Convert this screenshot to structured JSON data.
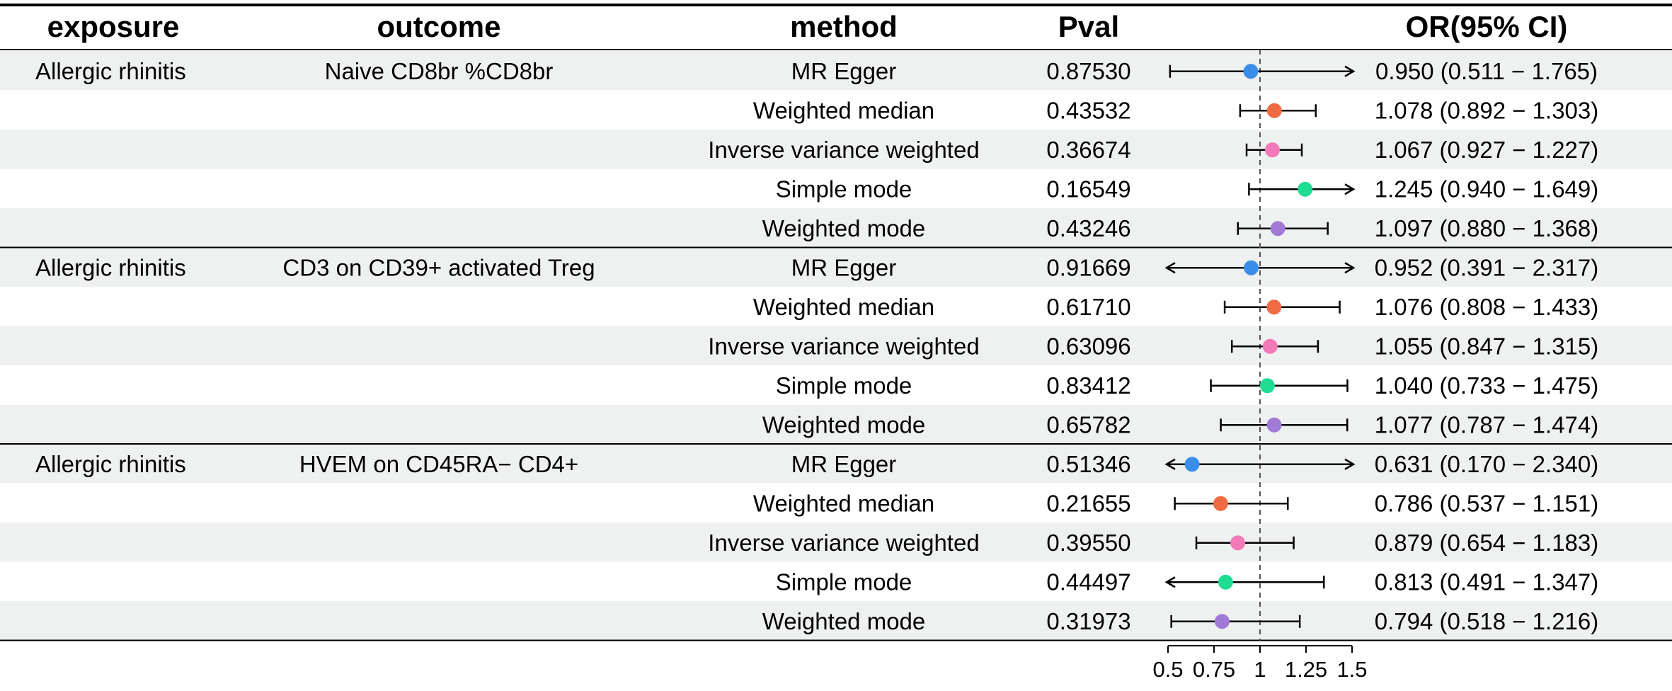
{
  "chart_data": {
    "type": "forest",
    "columns": {
      "exposure": "exposure",
      "outcome": "outcome",
      "method": "method",
      "pval": "Pval",
      "or": "OR(95% CI)"
    },
    "groups": [
      {
        "exposure": "Allergic rhinitis",
        "outcome": "Naive CD8br %CD8br",
        "rows": [
          {
            "method": "MR Egger",
            "pval": "0.87530",
            "or": 0.95,
            "lo": 0.511,
            "hi": 1.765,
            "ci_text": "0.950 (0.511 − 1.765)"
          },
          {
            "method": "Weighted median",
            "pval": "0.43532",
            "or": 1.078,
            "lo": 0.892,
            "hi": 1.303,
            "ci_text": "1.078 (0.892 − 1.303)"
          },
          {
            "method": "Inverse variance weighted",
            "pval": "0.36674",
            "or": 1.067,
            "lo": 0.927,
            "hi": 1.227,
            "ci_text": "1.067 (0.927 − 1.227)"
          },
          {
            "method": "Simple mode",
            "pval": "0.16549",
            "or": 1.245,
            "lo": 0.94,
            "hi": 1.649,
            "ci_text": "1.245 (0.940 − 1.649)"
          },
          {
            "method": "Weighted mode",
            "pval": "0.43246",
            "or": 1.097,
            "lo": 0.88,
            "hi": 1.368,
            "ci_text": "1.097 (0.880 − 1.368)"
          }
        ]
      },
      {
        "exposure": "Allergic rhinitis",
        "outcome": "CD3 on CD39+ activated Treg",
        "rows": [
          {
            "method": "MR Egger",
            "pval": "0.91669",
            "or": 0.952,
            "lo": 0.391,
            "hi": 2.317,
            "ci_text": "0.952 (0.391 − 2.317)"
          },
          {
            "method": "Weighted median",
            "pval": "0.61710",
            "or": 1.076,
            "lo": 0.808,
            "hi": 1.433,
            "ci_text": "1.076 (0.808 − 1.433)"
          },
          {
            "method": "Inverse variance weighted",
            "pval": "0.63096",
            "or": 1.055,
            "lo": 0.847,
            "hi": 1.315,
            "ci_text": "1.055 (0.847 − 1.315)"
          },
          {
            "method": "Simple mode",
            "pval": "0.83412",
            "or": 1.04,
            "lo": 0.733,
            "hi": 1.475,
            "ci_text": "1.040 (0.733 − 1.475)"
          },
          {
            "method": "Weighted mode",
            "pval": "0.65782",
            "or": 1.077,
            "lo": 0.787,
            "hi": 1.474,
            "ci_text": "1.077 (0.787 − 1.474)"
          }
        ]
      },
      {
        "exposure": "Allergic rhinitis",
        "outcome": "HVEM on CD45RA− CD4+",
        "rows": [
          {
            "method": "MR Egger",
            "pval": "0.51346",
            "or": 0.631,
            "lo": 0.17,
            "hi": 2.34,
            "ci_text": "0.631 (0.170 − 2.340)"
          },
          {
            "method": "Weighted median",
            "pval": "0.21655",
            "or": 0.786,
            "lo": 0.537,
            "hi": 1.151,
            "ci_text": "0.786 (0.537 − 1.151)"
          },
          {
            "method": "Inverse variance weighted",
            "pval": "0.39550",
            "or": 0.879,
            "lo": 0.654,
            "hi": 1.183,
            "ci_text": "0.879 (0.654 − 1.183)"
          },
          {
            "method": "Simple mode",
            "pval": "0.44497",
            "or": 0.813,
            "lo": 0.491,
            "hi": 1.347,
            "ci_text": "0.813 (0.491 − 1.347)"
          },
          {
            "method": "Weighted mode",
            "pval": "0.31973",
            "or": 0.794,
            "lo": 0.518,
            "hi": 1.216,
            "ci_text": "0.794 (0.518 − 1.216)"
          }
        ]
      }
    ],
    "x_axis": {
      "range": [
        0.5,
        1.5
      ],
      "ticks": [
        0.5,
        0.75,
        1,
        1.25,
        1.5
      ],
      "tick_labels": [
        "0.5",
        "0.75",
        "1",
        "1.25",
        "1.5"
      ],
      "reference_line": 1
    },
    "method_colors": {
      "MR Egger": "#3b8ee8",
      "Weighted median": "#f06a43",
      "Inverse variance weighted": "#f27ab8",
      "Simple mode": "#1fdc93",
      "Weighted mode": "#a07ad6"
    },
    "row_shading": "#eef1ef",
    "grid": false
  }
}
